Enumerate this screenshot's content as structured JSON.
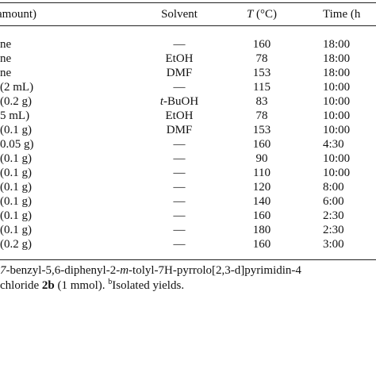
{
  "table": {
    "headers": {
      "catalyst": "amount)",
      "solvent": "Solvent",
      "temp_italic": "T",
      "temp_unit": " (°C)",
      "time": "Time (h"
    },
    "rows": [
      {
        "catalyst": "ne",
        "solvent": "—",
        "temp": "160",
        "time": "18:00"
      },
      {
        "catalyst": "ne",
        "solvent": "EtOH",
        "temp": "78",
        "time": "18:00"
      },
      {
        "catalyst": "ne",
        "solvent": "DMF",
        "temp": "153",
        "time": "18:00"
      },
      {
        "catalyst": "(2 mL)",
        "solvent": "—",
        "temp": "115",
        "time": "10:00"
      },
      {
        "catalyst": "(0.2 g)",
        "solvent_italic": "t",
        "solvent": "-BuOH",
        "temp": "83",
        "time": "10:00"
      },
      {
        "catalyst": "5 mL)",
        "solvent": "EtOH",
        "temp": "78",
        "time": "10:00"
      },
      {
        "catalyst": "(0.1 g)",
        "solvent": "DMF",
        "temp": "153",
        "time": "10:00"
      },
      {
        "catalyst": "0.05 g)",
        "solvent": "—",
        "temp": "160",
        "time": "4:30"
      },
      {
        "catalyst": "(0.1 g)",
        "solvent": "—",
        "temp": "90",
        "time": "10:00"
      },
      {
        "catalyst": "(0.1 g)",
        "solvent": "—",
        "temp": "110",
        "time": "10:00"
      },
      {
        "catalyst": "(0.1 g)",
        "solvent": "—",
        "temp": "120",
        "time": "8:00"
      },
      {
        "catalyst": "(0.1 g)",
        "solvent": "—",
        "temp": "140",
        "time": "6:00"
      },
      {
        "catalyst": "(0.1 g)",
        "solvent": "—",
        "temp": "160",
        "time": "2:30"
      },
      {
        "catalyst": "(0.1 g)",
        "solvent": "—",
        "temp": "180",
        "time": "2:30"
      },
      {
        "catalyst": "(0.2 g)",
        "solvent": "—",
        "temp": "160",
        "time": "3:00"
      }
    ]
  },
  "footnote": {
    "line1_a": "7",
    "line1_b": "-benzyl-5,6-diphenyl-2-",
    "line1_c": "m",
    "line1_d": "-tolyl-7H-pyrrolo[2,3-d]pyrimidin-4",
    "line2_a": " chloride ",
    "line2_bold": "2b",
    "line2_b": " (1 mmol). ",
    "line2_sup": "b",
    "line2_c": "Isolated yields."
  }
}
